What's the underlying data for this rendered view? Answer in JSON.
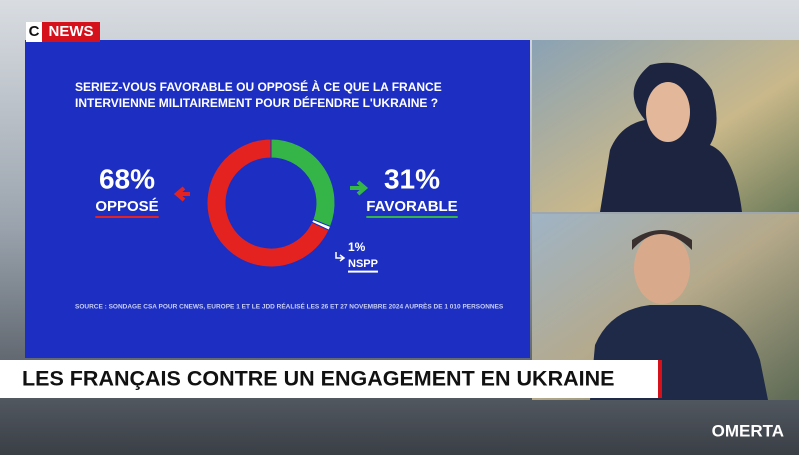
{
  "logo": {
    "letter": "C",
    "name": "NEWS"
  },
  "chart_data": {
    "type": "donut",
    "title": [
      "SERIEZ-VOUS FAVORABLE OU OPPOSÉ À CE QUE LA FRANCE",
      "INTERVIENNE MILITAIREMENT POUR DÉFENDRE L'UKRAINE ?"
    ],
    "categories": [
      "OPPOSÉ",
      "FAVORABLE",
      "NSPP"
    ],
    "values": [
      68,
      31,
      1
    ],
    "value_labels": [
      "68%",
      "31%",
      "1%"
    ],
    "colors": [
      "#e42320",
      "#35b548",
      "#ffffff"
    ],
    "source": "SOURCE : SONDAGE CSA POUR CNEWS, EUROPE 1 ET LE JDD RÉALISÉ LES 26 ET 27 NOVEMBRE 2024 AUPRÈS DE 1 010 PERSONNES"
  },
  "headline": "LES FRANÇAIS CONTRE UN ENGAGEMENT EN UKRAINE",
  "watermark": "OMERTA"
}
